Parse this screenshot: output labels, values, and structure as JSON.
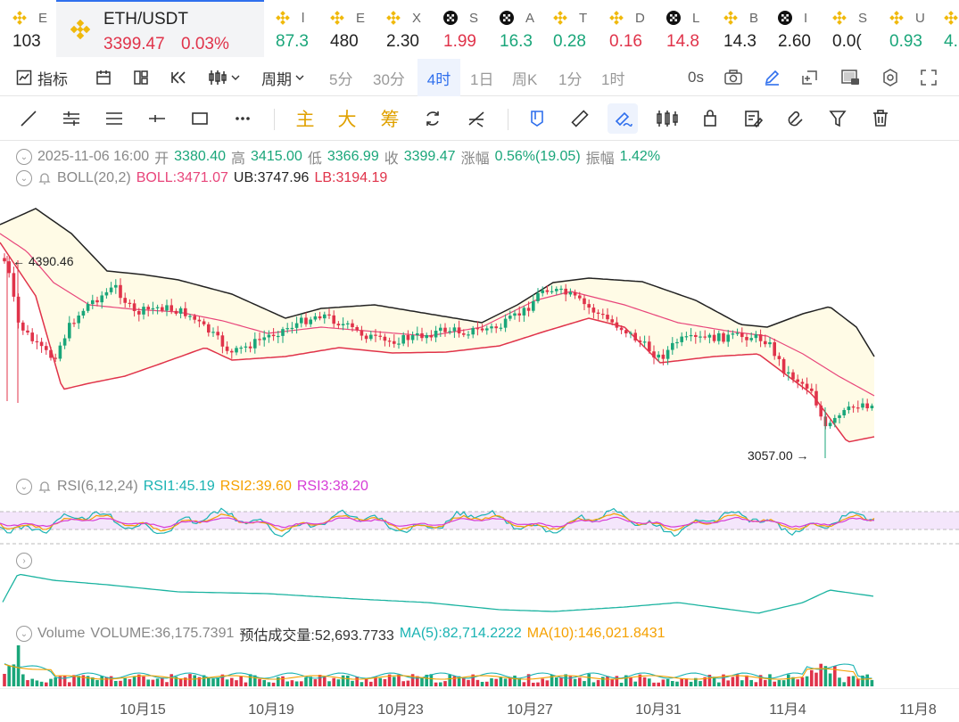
{
  "tickers": [
    {
      "letter": "E",
      "price": "103",
      "color": "#222",
      "icon": "binance-icon"
    },
    {
      "letter": "l",
      "price": "87.3",
      "color": "#1aa67a",
      "icon": "binance-icon"
    },
    {
      "letter": "E",
      "price": "480",
      "color": "#222",
      "icon": "binance-icon"
    },
    {
      "letter": "X",
      "price": "2.30",
      "color": "#222",
      "icon": "binance-icon"
    },
    {
      "letter": "S",
      "price": "1.99",
      "color": "#e0334a",
      "icon": "okx-icon"
    },
    {
      "letter": "A",
      "price": "16.3",
      "color": "#1aa67a",
      "icon": "okx-icon"
    },
    {
      "letter": "T",
      "price": "0.28",
      "color": "#1aa67a",
      "icon": "binance-icon"
    },
    {
      "letter": "D",
      "price": "0.16",
      "color": "#e0334a",
      "icon": "binance-icon"
    },
    {
      "letter": "L",
      "price": "14.8",
      "color": "#e0334a",
      "icon": "okx-icon"
    },
    {
      "letter": "B",
      "price": "14.3",
      "color": "#222",
      "icon": "binance-icon"
    },
    {
      "letter": "I",
      "price": "2.60",
      "color": "#222",
      "icon": "okx-icon"
    },
    {
      "letter": "S",
      "price": "0.0(",
      "color": "#222",
      "icon": "binance-icon"
    },
    {
      "letter": "U",
      "price": "0.93",
      "color": "#1aa67a",
      "icon": "binance-icon"
    },
    {
      "letter": "",
      "price": "4.",
      "color": "#1aa67a",
      "icon": "binance-icon"
    }
  ],
  "active": {
    "pair": "ETH/USDT",
    "price": "3399.47",
    "change": "0.03%"
  },
  "toolbar": {
    "indicator": "指标",
    "period": "周期",
    "periods": [
      "5分",
      "30分",
      "4时",
      "1日",
      "周K",
      "1分",
      "1时"
    ],
    "selected_period": "4时",
    "countdown": "0s"
  },
  "drawing": {
    "main": "主",
    "big": "大",
    "chips": "筹"
  },
  "ohlc": {
    "date": "2025-11-06 16:00",
    "open_label": "开",
    "open": "3380.40",
    "high_label": "高",
    "high": "3415.00",
    "low_label": "低",
    "low": "3366.99",
    "close_label": "收",
    "close": "3399.47",
    "chg_label": "涨幅",
    "chg": "0.56%(19.05)",
    "amp_label": "振幅",
    "amp": "1.42%"
  },
  "boll": {
    "name": "BOLL(20,2)",
    "boll": "BOLL:3471.07",
    "ub": "UB:3747.96",
    "lb": "LB:3194.19"
  },
  "rsi": {
    "name": "RSI(6,12,24)",
    "rsi1": "RSI1:45.19",
    "rsi2": "RSI2:39.60",
    "rsi3": "RSI3:38.20"
  },
  "volume": {
    "name": "Volume",
    "vol": "VOLUME:36,175.7391",
    "est": "预估成交量:52,693.7733",
    "ma5": "MA(5):82,714.2222",
    "ma10": "MA(10):146,021.8431"
  },
  "chart_data": {
    "type": "candlestick",
    "high_marker": "4390.46",
    "low_marker": "3057.00",
    "x_ticks": [
      "10月15",
      "10月19",
      "10月23",
      "10月27",
      "10月31",
      "11月4",
      "11月8"
    ],
    "colors": {
      "up": "#1aa67a",
      "down": "#e0334a",
      "boll": "#e8457a",
      "band": "#222",
      "fill": "#fffbe6"
    }
  }
}
